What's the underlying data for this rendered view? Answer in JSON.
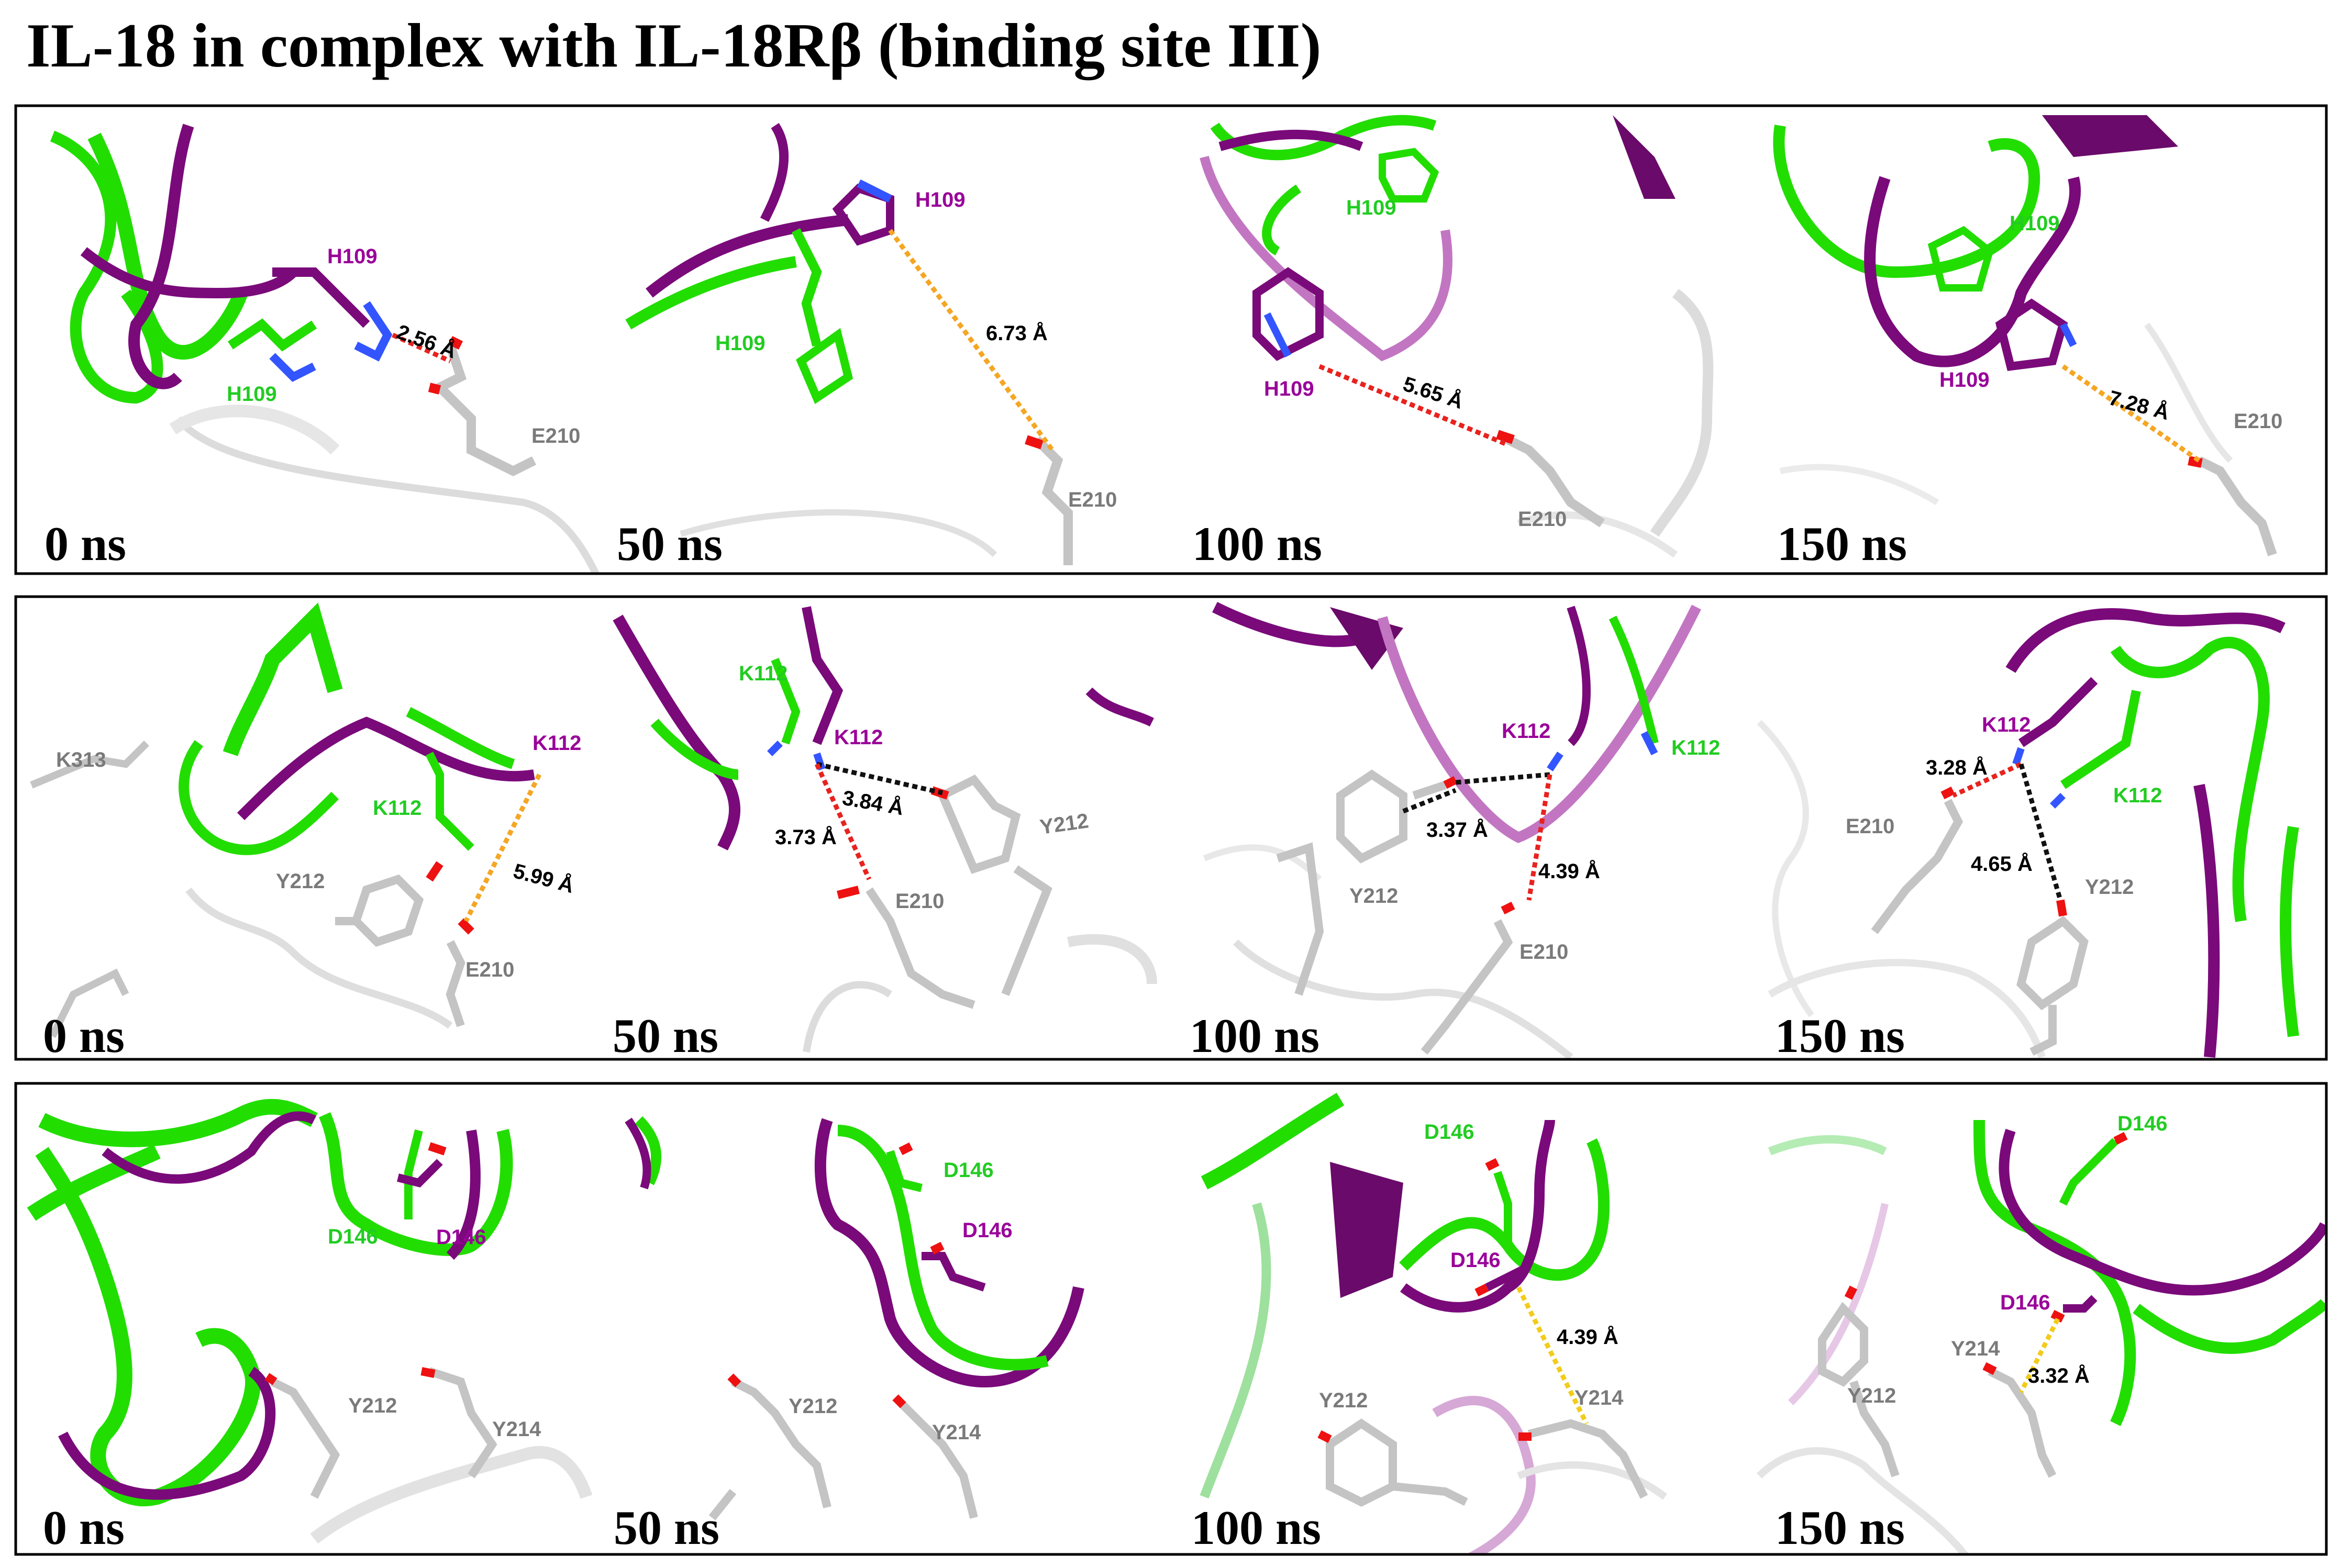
{
  "title": "IL-18 in complex with IL-18Rβ (binding site III)",
  "colors": {
    "green": "#22dd00",
    "purple": "#7a0a7a",
    "gray": "#bdbdbd",
    "red_dash": "#e8221e",
    "orange_dash": "#f5a623",
    "black_dash": "#111111",
    "yellow_dash": "#f2cc1a",
    "nitrogen": "#3355ff",
    "oxygen": "#ee1111"
  },
  "rows": [
    {
      "panels": [
        {
          "time": "0 ns",
          "labels": {
            "purple": "H109",
            "green": "H109",
            "gray": "E210"
          },
          "distance": "2.56 Å"
        },
        {
          "time": "50 ns",
          "labels": {
            "purple": "H109",
            "green": "H109",
            "gray": "E210"
          },
          "distance": "6.73 Å"
        },
        {
          "time": "100 ns",
          "labels": {
            "purple": "H109",
            "green": "H109",
            "gray": "E210"
          },
          "distance": "5.65 Å"
        },
        {
          "time": "150 ns",
          "labels": {
            "purple": "H109",
            "green": "H109",
            "gray": "E210"
          },
          "distance": "7.28 Å"
        }
      ]
    },
    {
      "panels": [
        {
          "time": "0 ns",
          "labels": {
            "purple": "K112",
            "green": "K112",
            "gray1": "K313",
            "gray2": "Y212",
            "gray3": "E210"
          },
          "distance": "5.99 Å"
        },
        {
          "time": "50 ns",
          "labels": {
            "purple": "K112",
            "green": "K112",
            "gray1": "Y212",
            "gray2": "E210"
          },
          "distances": [
            "3.84 Å",
            "3.73 Å"
          ]
        },
        {
          "time": "100 ns",
          "labels": {
            "purple": "K112",
            "green": "K112",
            "gray1": "Y212",
            "gray2": "E210"
          },
          "distances": [
            "3.37 Å",
            "4.39 Å"
          ]
        },
        {
          "time": "150 ns",
          "labels": {
            "purple": "K112",
            "green": "K112",
            "gray1": "E210",
            "gray2": "Y212"
          },
          "distances": [
            "3.28 Å",
            "4.65 Å"
          ]
        }
      ]
    },
    {
      "panels": [
        {
          "time": "0 ns",
          "labels": {
            "purple": "D146",
            "green": "D146",
            "gray1": "Y212",
            "gray2": "Y214"
          }
        },
        {
          "time": "50 ns",
          "labels": {
            "purple": "D146",
            "green": "D146",
            "gray1": "Y212",
            "gray2": "Y214"
          }
        },
        {
          "time": "100 ns",
          "labels": {
            "purple": "D146",
            "green": "D146",
            "gray1": "Y212",
            "gray2": "Y214"
          },
          "distance": "4.39 Å"
        },
        {
          "time": "150 ns",
          "labels": {
            "purple": "D146",
            "green": "D146",
            "gray1": "Y212",
            "gray2": "Y214"
          },
          "distance": "3.32 Å"
        }
      ]
    }
  ]
}
